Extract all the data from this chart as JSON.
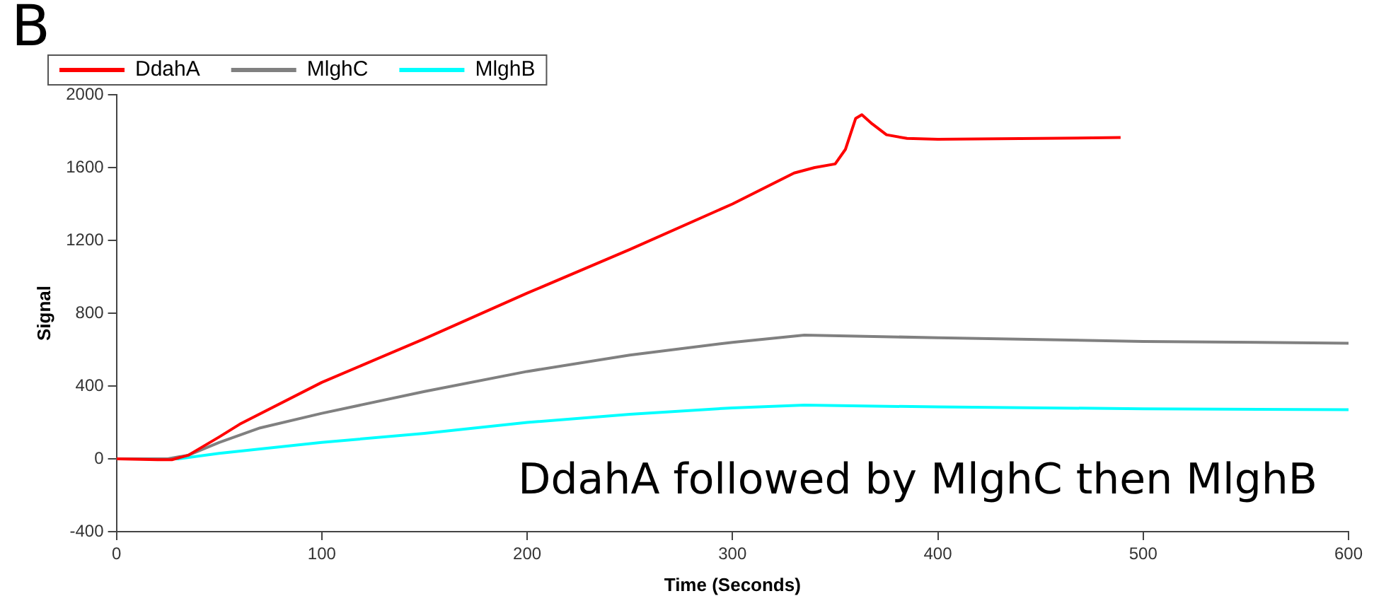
{
  "chart_data": {
    "type": "line",
    "xlabel": "Time (Seconds)",
    "ylabel": "Signal",
    "annotations": [
      "B",
      "DdahA followed by MlghC then MlghB"
    ],
    "xlim": [
      0,
      600
    ],
    "xticks": [
      0,
      100,
      200,
      300,
      400,
      500,
      600
    ],
    "ylim": [
      -400,
      2000
    ],
    "yticks": [
      -400,
      0,
      400,
      800,
      1200,
      1600,
      2000
    ],
    "grid": false,
    "legend": "top left",
    "marker": "none",
    "line_style": "solid",
    "series": [
      {
        "name": "DdahA",
        "color": "#ff0000",
        "x": [
          0,
          20,
          27,
          35,
          50,
          60,
          100,
          150,
          200,
          250,
          300,
          330,
          340,
          350,
          355,
          360,
          363,
          368,
          375,
          385,
          400,
          450,
          489
        ],
        "values": [
          0,
          -5,
          -5,
          20,
          120,
          190,
          420,
          660,
          910,
          1150,
          1400,
          1570,
          1600,
          1620,
          1700,
          1870,
          1890,
          1840,
          1780,
          1760,
          1755,
          1760,
          1765
        ]
      },
      {
        "name": "MlghC",
        "color": "#808080",
        "x": [
          0,
          25,
          35,
          50,
          70,
          100,
          150,
          200,
          250,
          300,
          335,
          400,
          500,
          600
        ],
        "values": [
          0,
          0,
          20,
          90,
          170,
          250,
          370,
          480,
          570,
          640,
          680,
          665,
          645,
          635
        ]
      },
      {
        "name": "MlghB",
        "color": "#00ffff",
        "x": [
          0,
          30,
          50,
          100,
          150,
          200,
          250,
          300,
          335,
          400,
          500,
          600
        ],
        "values": [
          0,
          0,
          30,
          90,
          140,
          200,
          245,
          280,
          295,
          285,
          275,
          270
        ]
      }
    ]
  }
}
